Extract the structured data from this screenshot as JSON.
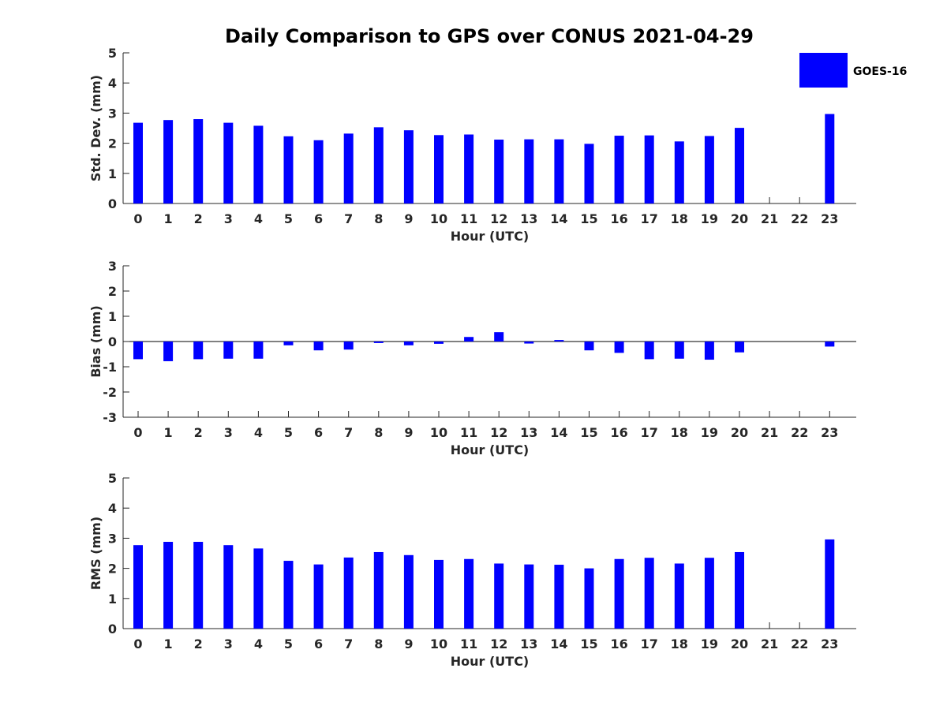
{
  "figure": {
    "title": "Daily Comparison to GPS over CONUS 2021-04-29",
    "bar_color": "#0000ff",
    "axis_color": "#262626"
  },
  "legend": {
    "label": "GOES-16",
    "placement": "top-right"
  },
  "chart_data": [
    {
      "type": "bar",
      "name": "std-dev",
      "series_name": "GOES-16",
      "xlabel": "Hour (UTC)",
      "ylabel": "Std. Dev. (mm)",
      "ylim": [
        0,
        5
      ],
      "yticks": [
        "0",
        "1",
        "2",
        "3",
        "4",
        "5"
      ],
      "categories": [
        "0",
        "1",
        "2",
        "3",
        "4",
        "5",
        "6",
        "7",
        "8",
        "9",
        "10",
        "11",
        "12",
        "13",
        "14",
        "15",
        "16",
        "17",
        "18",
        "19",
        "20",
        "21",
        "22",
        "23"
      ],
      "values": [
        2.68,
        2.77,
        2.8,
        2.68,
        2.58,
        2.23,
        2.1,
        2.32,
        2.53,
        2.43,
        2.27,
        2.29,
        2.12,
        2.13,
        2.13,
        1.98,
        2.25,
        2.26,
        2.06,
        2.24,
        2.51,
        null,
        null,
        2.97
      ]
    },
    {
      "type": "bar",
      "name": "bias",
      "series_name": "GOES-16",
      "xlabel": "Hour (UTC)",
      "ylabel": "Bias (mm)",
      "ylim": [
        -3,
        3
      ],
      "yticks": [
        "-3",
        "-2",
        "-1",
        "0",
        "1",
        "2",
        "3"
      ],
      "categories": [
        "0",
        "1",
        "2",
        "3",
        "4",
        "5",
        "6",
        "7",
        "8",
        "9",
        "10",
        "11",
        "12",
        "13",
        "14",
        "15",
        "16",
        "17",
        "18",
        "19",
        "20",
        "21",
        "22",
        "23"
      ],
      "values": [
        -0.7,
        -0.78,
        -0.7,
        -0.68,
        -0.68,
        -0.15,
        -0.35,
        -0.32,
        -0.06,
        -0.15,
        -0.09,
        0.18,
        0.37,
        -0.08,
        0.06,
        -0.35,
        -0.45,
        -0.7,
        -0.68,
        -0.72,
        -0.43,
        null,
        null,
        -0.2
      ]
    },
    {
      "type": "bar",
      "name": "rms",
      "series_name": "GOES-16",
      "xlabel": "Hour (UTC)",
      "ylabel": "RMS (mm)",
      "ylim": [
        0,
        5
      ],
      "yticks": [
        "0",
        "1",
        "2",
        "3",
        "4",
        "5"
      ],
      "categories": [
        "0",
        "1",
        "2",
        "3",
        "4",
        "5",
        "6",
        "7",
        "8",
        "9",
        "10",
        "11",
        "12",
        "13",
        "14",
        "15",
        "16",
        "17",
        "18",
        "19",
        "20",
        "21",
        "22",
        "23"
      ],
      "values": [
        2.77,
        2.88,
        2.88,
        2.77,
        2.66,
        2.25,
        2.13,
        2.36,
        2.54,
        2.44,
        2.28,
        2.31,
        2.16,
        2.13,
        2.12,
        2.0,
        2.31,
        2.35,
        2.16,
        2.35,
        2.54,
        null,
        null,
        2.96
      ]
    }
  ]
}
